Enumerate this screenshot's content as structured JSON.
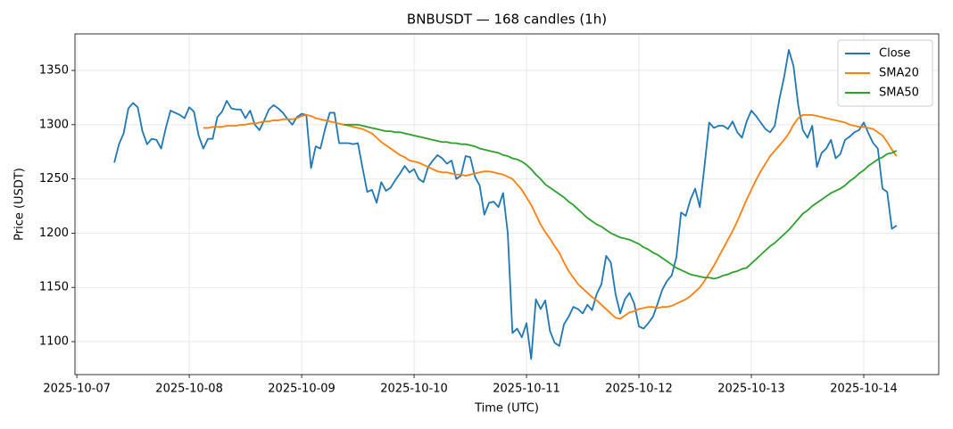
{
  "chart_data": {
    "type": "line",
    "title": "BNBUSDT — 168 candles (1h)",
    "x_label": "Time (UTC)",
    "y_label": "Price (USDT)",
    "grid": true,
    "legend": "upper right",
    "xlim": [
      "2025-10-06T23:36",
      "2025-10-14T16:00"
    ],
    "ylim": [
      1069.6,
      1383.7
    ],
    "yticks": [
      1100,
      1150,
      1200,
      1250,
      1300,
      1350
    ],
    "xticks": [
      {
        "value": "2025-10-07T00:00",
        "label": "2025-10-07"
      },
      {
        "value": "2025-10-08T00:00",
        "label": "2025-10-08"
      },
      {
        "value": "2025-10-09T00:00",
        "label": "2025-10-09"
      },
      {
        "value": "2025-10-10T00:00",
        "label": "2025-10-10"
      },
      {
        "value": "2025-10-11T00:00",
        "label": "2025-10-11"
      },
      {
        "value": "2025-10-12T00:00",
        "label": "2025-10-12"
      },
      {
        "value": "2025-10-13T00:00",
        "label": "2025-10-13"
      },
      {
        "value": "2025-10-14T00:00",
        "label": "2025-10-14"
      }
    ],
    "x": [
      "2025-10-07T08:00",
      "2025-10-07T09:00",
      "2025-10-07T10:00",
      "2025-10-07T11:00",
      "2025-10-07T12:00",
      "2025-10-07T13:00",
      "2025-10-07T14:00",
      "2025-10-07T15:00",
      "2025-10-07T16:00",
      "2025-10-07T17:00",
      "2025-10-07T18:00",
      "2025-10-07T19:00",
      "2025-10-07T20:00",
      "2025-10-07T21:00",
      "2025-10-07T22:00",
      "2025-10-07T23:00",
      "2025-10-08T00:00",
      "2025-10-08T01:00",
      "2025-10-08T02:00",
      "2025-10-08T03:00",
      "2025-10-08T04:00",
      "2025-10-08T05:00",
      "2025-10-08T06:00",
      "2025-10-08T07:00",
      "2025-10-08T08:00",
      "2025-10-08T09:00",
      "2025-10-08T10:00",
      "2025-10-08T11:00",
      "2025-10-08T12:00",
      "2025-10-08T13:00",
      "2025-10-08T14:00",
      "2025-10-08T15:00",
      "2025-10-08T16:00",
      "2025-10-08T17:00",
      "2025-10-08T18:00",
      "2025-10-08T19:00",
      "2025-10-08T20:00",
      "2025-10-08T21:00",
      "2025-10-08T22:00",
      "2025-10-08T23:00",
      "2025-10-09T00:00",
      "2025-10-09T01:00",
      "2025-10-09T02:00",
      "2025-10-09T03:00",
      "2025-10-09T04:00",
      "2025-10-09T05:00",
      "2025-10-09T06:00",
      "2025-10-09T07:00",
      "2025-10-09T08:00",
      "2025-10-09T09:00",
      "2025-10-09T10:00",
      "2025-10-09T11:00",
      "2025-10-09T12:00",
      "2025-10-09T13:00",
      "2025-10-09T14:00",
      "2025-10-09T15:00",
      "2025-10-09T16:00",
      "2025-10-09T17:00",
      "2025-10-09T18:00",
      "2025-10-09T19:00",
      "2025-10-09T20:00",
      "2025-10-09T21:00",
      "2025-10-09T22:00",
      "2025-10-09T23:00",
      "2025-10-10T00:00",
      "2025-10-10T01:00",
      "2025-10-10T02:00",
      "2025-10-10T03:00",
      "2025-10-10T04:00",
      "2025-10-10T05:00",
      "2025-10-10T06:00",
      "2025-10-10T07:00",
      "2025-10-10T08:00",
      "2025-10-10T09:00",
      "2025-10-10T10:00",
      "2025-10-10T11:00",
      "2025-10-10T12:00",
      "2025-10-10T13:00",
      "2025-10-10T14:00",
      "2025-10-10T15:00",
      "2025-10-10T16:00",
      "2025-10-10T17:00",
      "2025-10-10T18:00",
      "2025-10-10T19:00",
      "2025-10-10T20:00",
      "2025-10-10T21:00",
      "2025-10-10T22:00",
      "2025-10-10T23:00",
      "2025-10-11T00:00",
      "2025-10-11T01:00",
      "2025-10-11T02:00",
      "2025-10-11T03:00",
      "2025-10-11T04:00",
      "2025-10-11T05:00",
      "2025-10-11T06:00",
      "2025-10-11T07:00",
      "2025-10-11T08:00",
      "2025-10-11T09:00",
      "2025-10-11T10:00",
      "2025-10-11T11:00",
      "2025-10-11T12:00",
      "2025-10-11T13:00",
      "2025-10-11T14:00",
      "2025-10-11T15:00",
      "2025-10-11T16:00",
      "2025-10-11T17:00",
      "2025-10-11T18:00",
      "2025-10-11T19:00",
      "2025-10-11T20:00",
      "2025-10-11T21:00",
      "2025-10-11T22:00",
      "2025-10-11T23:00",
      "2025-10-12T00:00",
      "2025-10-12T01:00",
      "2025-10-12T02:00",
      "2025-10-12T03:00",
      "2025-10-12T04:00",
      "2025-10-12T05:00",
      "2025-10-12T06:00",
      "2025-10-12T07:00",
      "2025-10-12T08:00",
      "2025-10-12T09:00",
      "2025-10-12T10:00",
      "2025-10-12T11:00",
      "2025-10-12T12:00",
      "2025-10-12T13:00",
      "2025-10-12T14:00",
      "2025-10-12T15:00",
      "2025-10-12T16:00",
      "2025-10-12T17:00",
      "2025-10-12T18:00",
      "2025-10-12T19:00",
      "2025-10-12T20:00",
      "2025-10-12T21:00",
      "2025-10-12T22:00",
      "2025-10-12T23:00",
      "2025-10-13T00:00",
      "2025-10-13T01:00",
      "2025-10-13T02:00",
      "2025-10-13T03:00",
      "2025-10-13T04:00",
      "2025-10-13T05:00",
      "2025-10-13T06:00",
      "2025-10-13T07:00",
      "2025-10-13T08:00",
      "2025-10-13T09:00",
      "2025-10-13T10:00",
      "2025-10-13T11:00",
      "2025-10-13T12:00",
      "2025-10-13T13:00",
      "2025-10-13T14:00",
      "2025-10-13T15:00",
      "2025-10-13T16:00",
      "2025-10-13T17:00",
      "2025-10-13T18:00",
      "2025-10-13T19:00",
      "2025-10-13T20:00",
      "2025-10-13T21:00",
      "2025-10-13T22:00",
      "2025-10-13T23:00",
      "2025-10-14T00:00",
      "2025-10-14T01:00",
      "2025-10-14T02:00",
      "2025-10-14T03:00",
      "2025-10-14T04:00",
      "2025-10-14T05:00",
      "2025-10-14T06:00",
      "2025-10-14T07:00"
    ],
    "series": [
      {
        "name": "Close",
        "color": "#1f77b4",
        "values": [
          1265,
          1282,
          1292,
          1315,
          1320,
          1316,
          1294,
          1282,
          1287,
          1286,
          1278,
          1297,
          1313,
          1311,
          1309,
          1306,
          1316,
          1312,
          1290,
          1278,
          1287,
          1287,
          1307,
          1312,
          1322,
          1315,
          1314,
          1314,
          1306,
          1313,
          1300,
          1295,
          1304,
          1314,
          1318,
          1315,
          1311,
          1305,
          1300,
          1307,
          1310,
          1309,
          1260,
          1280,
          1278,
          1296,
          1311,
          1311,
          1283,
          1283,
          1283,
          1282,
          1283,
          1260,
          1238,
          1240,
          1228,
          1247,
          1239,
          1242,
          1249,
          1255,
          1262,
          1256,
          1259,
          1250,
          1247,
          1261,
          1267,
          1272,
          1269,
          1264,
          1267,
          1250,
          1253,
          1271,
          1270,
          1252,
          1244,
          1217,
          1228,
          1229,
          1224,
          1237,
          1200,
          1108,
          1112,
          1104,
          1117,
          1084,
          1139,
          1130,
          1138,
          1110,
          1099,
          1096,
          1116,
          1123,
          1132,
          1130,
          1126,
          1134,
          1129,
          1144,
          1153,
          1179,
          1173,
          1144,
          1126,
          1139,
          1145,
          1135,
          1114,
          1112,
          1117,
          1123,
          1135,
          1148,
          1156,
          1161,
          1178,
          1219,
          1216,
          1231,
          1241,
          1224,
          1262,
          1302,
          1297,
          1299,
          1299,
          1296,
          1303,
          1293,
          1288,
          1303,
          1313,
          1308,
          1302,
          1296,
          1293,
          1299,
          1324,
          1344,
          1369,
          1354,
          1318,
          1295,
          1288,
          1299,
          1261,
          1274,
          1278,
          1286,
          1269,
          1273,
          1286,
          1289,
          1293,
          1295,
          1302,
          1292,
          1283,
          1278,
          1241,
          1238,
          1204,
          1207
        ]
      },
      {
        "name": "SMA20",
        "color": "#ff7f0e",
        "values": [
          null,
          null,
          null,
          null,
          null,
          null,
          null,
          null,
          null,
          null,
          null,
          null,
          null,
          null,
          null,
          null,
          null,
          null,
          null,
          1297,
          1297,
          1298,
          1298,
          1298,
          1299,
          1299,
          1299,
          1300,
          1300,
          1301,
          1301,
          1302,
          1303,
          1303,
          1304,
          1304,
          1305,
          1305,
          1305,
          1306,
          1308,
          1309,
          1308,
          1306,
          1305,
          1304,
          1303,
          1302,
          1301,
          1300,
          1299,
          1298,
          1297,
          1296,
          1294,
          1292,
          1288,
          1284,
          1281,
          1278,
          1275,
          1272,
          1270,
          1267,
          1266,
          1265,
          1263,
          1261,
          1259,
          1257,
          1256,
          1256,
          1255,
          1254,
          1254,
          1253,
          1254,
          1255,
          1256,
          1257,
          1257,
          1256,
          1255,
          1254,
          1252,
          1250,
          1245,
          1240,
          1233,
          1226,
          1217,
          1208,
          1201,
          1195,
          1188,
          1182,
          1173,
          1165,
          1159,
          1153,
          1149,
          1145,
          1141,
          1138,
          1134,
          1130,
          1126,
          1122,
          1121,
          1124,
          1127,
          1128,
          1130,
          1131,
          1132,
          1132,
          1131,
          1132,
          1132,
          1133,
          1135,
          1137,
          1139,
          1142,
          1146,
          1150,
          1156,
          1163,
          1170,
          1178,
          1186,
          1194,
          1202,
          1211,
          1221,
          1231,
          1240,
          1249,
          1257,
          1264,
          1271,
          1276,
          1281,
          1286,
          1292,
          1300,
          1306,
          1309,
          1309,
          1309,
          1308,
          1307,
          1306,
          1305,
          1304,
          1303,
          1302,
          1300,
          1299,
          1298,
          1298,
          1297,
          1296,
          1293,
          1290,
          1284,
          1277,
          1271
        ]
      },
      {
        "name": "SMA50",
        "color": "#2ca02c",
        "values": [
          null,
          null,
          null,
          null,
          null,
          null,
          null,
          null,
          null,
          null,
          null,
          null,
          null,
          null,
          null,
          null,
          null,
          null,
          null,
          null,
          null,
          null,
          null,
          null,
          null,
          null,
          null,
          null,
          null,
          null,
          null,
          null,
          null,
          null,
          null,
          null,
          null,
          null,
          null,
          null,
          null,
          null,
          null,
          null,
          null,
          null,
          null,
          null,
          null,
          1300,
          1300,
          1300,
          1300,
          1299,
          1298,
          1297,
          1296,
          1295,
          1294,
          1294,
          1293,
          1293,
          1292,
          1291,
          1290,
          1289,
          1288,
          1287,
          1286,
          1285,
          1284,
          1284,
          1283,
          1283,
          1282,
          1282,
          1281,
          1280,
          1278,
          1277,
          1276,
          1275,
          1274,
          1272,
          1271,
          1269,
          1268,
          1266,
          1263,
          1259,
          1254,
          1250,
          1245,
          1242,
          1239,
          1236,
          1233,
          1229,
          1226,
          1222,
          1218,
          1214,
          1211,
          1208,
          1206,
          1203,
          1200,
          1198,
          1196,
          1195,
          1194,
          1192,
          1190,
          1187,
          1185,
          1182,
          1180,
          1177,
          1174,
          1171,
          1168,
          1166,
          1164,
          1162,
          1161,
          1160,
          1159,
          1159,
          1158,
          1159,
          1161,
          1162,
          1164,
          1165,
          1167,
          1168,
          1172,
          1176,
          1180,
          1184,
          1188,
          1191,
          1195,
          1199,
          1203,
          1208,
          1213,
          1218,
          1221,
          1225,
          1228,
          1231,
          1234,
          1237,
          1239,
          1241,
          1244,
          1248,
          1251,
          1255,
          1258,
          1262,
          1265,
          1268,
          1270,
          1273,
          1274,
          1276
        ]
      }
    ]
  }
}
